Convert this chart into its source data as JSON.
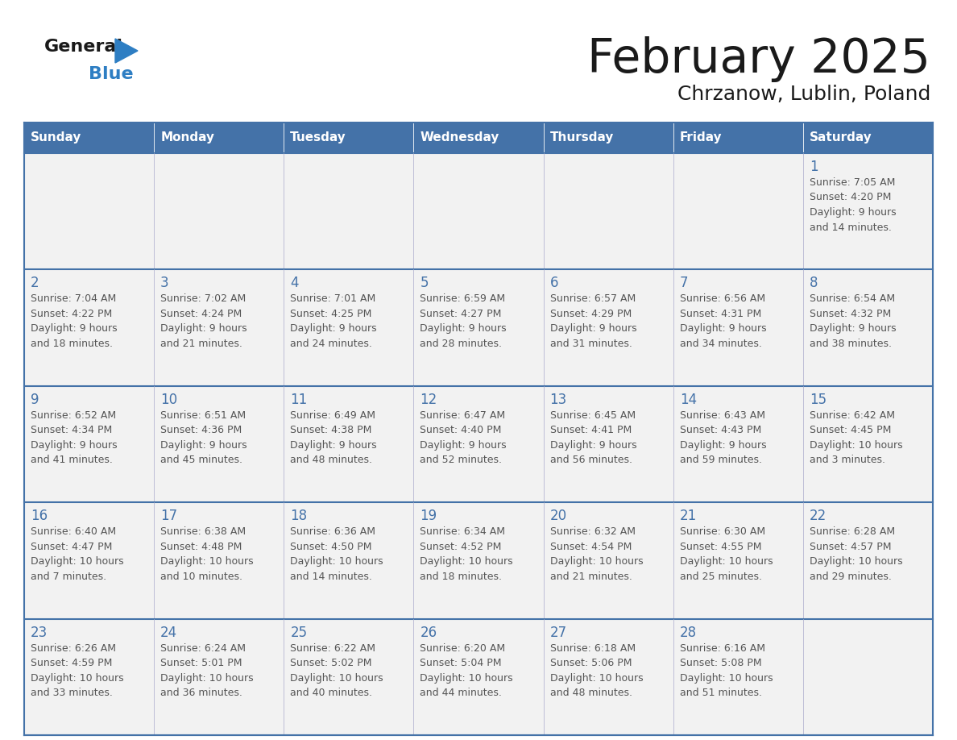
{
  "title": "February 2025",
  "subtitle": "Chrzanow, Lublin, Poland",
  "header_bg_color": "#4472A8",
  "header_text_color": "#FFFFFF",
  "cell_bg_color": "#F2F2F2",
  "text_color": "#555555",
  "day_number_color": "#4472A8",
  "border_color": "#4472A8",
  "thin_border_color": "#aaaacc",
  "days_of_week": [
    "Sunday",
    "Monday",
    "Tuesday",
    "Wednesday",
    "Thursday",
    "Friday",
    "Saturday"
  ],
  "calendar": [
    [
      {
        "day": null,
        "info": null
      },
      {
        "day": null,
        "info": null
      },
      {
        "day": null,
        "info": null
      },
      {
        "day": null,
        "info": null
      },
      {
        "day": null,
        "info": null
      },
      {
        "day": null,
        "info": null
      },
      {
        "day": 1,
        "info": "Sunrise: 7:05 AM\nSunset: 4:20 PM\nDaylight: 9 hours\nand 14 minutes."
      }
    ],
    [
      {
        "day": 2,
        "info": "Sunrise: 7:04 AM\nSunset: 4:22 PM\nDaylight: 9 hours\nand 18 minutes."
      },
      {
        "day": 3,
        "info": "Sunrise: 7:02 AM\nSunset: 4:24 PM\nDaylight: 9 hours\nand 21 minutes."
      },
      {
        "day": 4,
        "info": "Sunrise: 7:01 AM\nSunset: 4:25 PM\nDaylight: 9 hours\nand 24 minutes."
      },
      {
        "day": 5,
        "info": "Sunrise: 6:59 AM\nSunset: 4:27 PM\nDaylight: 9 hours\nand 28 minutes."
      },
      {
        "day": 6,
        "info": "Sunrise: 6:57 AM\nSunset: 4:29 PM\nDaylight: 9 hours\nand 31 minutes."
      },
      {
        "day": 7,
        "info": "Sunrise: 6:56 AM\nSunset: 4:31 PM\nDaylight: 9 hours\nand 34 minutes."
      },
      {
        "day": 8,
        "info": "Sunrise: 6:54 AM\nSunset: 4:32 PM\nDaylight: 9 hours\nand 38 minutes."
      }
    ],
    [
      {
        "day": 9,
        "info": "Sunrise: 6:52 AM\nSunset: 4:34 PM\nDaylight: 9 hours\nand 41 minutes."
      },
      {
        "day": 10,
        "info": "Sunrise: 6:51 AM\nSunset: 4:36 PM\nDaylight: 9 hours\nand 45 minutes."
      },
      {
        "day": 11,
        "info": "Sunrise: 6:49 AM\nSunset: 4:38 PM\nDaylight: 9 hours\nand 48 minutes."
      },
      {
        "day": 12,
        "info": "Sunrise: 6:47 AM\nSunset: 4:40 PM\nDaylight: 9 hours\nand 52 minutes."
      },
      {
        "day": 13,
        "info": "Sunrise: 6:45 AM\nSunset: 4:41 PM\nDaylight: 9 hours\nand 56 minutes."
      },
      {
        "day": 14,
        "info": "Sunrise: 6:43 AM\nSunset: 4:43 PM\nDaylight: 9 hours\nand 59 minutes."
      },
      {
        "day": 15,
        "info": "Sunrise: 6:42 AM\nSunset: 4:45 PM\nDaylight: 10 hours\nand 3 minutes."
      }
    ],
    [
      {
        "day": 16,
        "info": "Sunrise: 6:40 AM\nSunset: 4:47 PM\nDaylight: 10 hours\nand 7 minutes."
      },
      {
        "day": 17,
        "info": "Sunrise: 6:38 AM\nSunset: 4:48 PM\nDaylight: 10 hours\nand 10 minutes."
      },
      {
        "day": 18,
        "info": "Sunrise: 6:36 AM\nSunset: 4:50 PM\nDaylight: 10 hours\nand 14 minutes."
      },
      {
        "day": 19,
        "info": "Sunrise: 6:34 AM\nSunset: 4:52 PM\nDaylight: 10 hours\nand 18 minutes."
      },
      {
        "day": 20,
        "info": "Sunrise: 6:32 AM\nSunset: 4:54 PM\nDaylight: 10 hours\nand 21 minutes."
      },
      {
        "day": 21,
        "info": "Sunrise: 6:30 AM\nSunset: 4:55 PM\nDaylight: 10 hours\nand 25 minutes."
      },
      {
        "day": 22,
        "info": "Sunrise: 6:28 AM\nSunset: 4:57 PM\nDaylight: 10 hours\nand 29 minutes."
      }
    ],
    [
      {
        "day": 23,
        "info": "Sunrise: 6:26 AM\nSunset: 4:59 PM\nDaylight: 10 hours\nand 33 minutes."
      },
      {
        "day": 24,
        "info": "Sunrise: 6:24 AM\nSunset: 5:01 PM\nDaylight: 10 hours\nand 36 minutes."
      },
      {
        "day": 25,
        "info": "Sunrise: 6:22 AM\nSunset: 5:02 PM\nDaylight: 10 hours\nand 40 minutes."
      },
      {
        "day": 26,
        "info": "Sunrise: 6:20 AM\nSunset: 5:04 PM\nDaylight: 10 hours\nand 44 minutes."
      },
      {
        "day": 27,
        "info": "Sunrise: 6:18 AM\nSunset: 5:06 PM\nDaylight: 10 hours\nand 48 minutes."
      },
      {
        "day": 28,
        "info": "Sunrise: 6:16 AM\nSunset: 5:08 PM\nDaylight: 10 hours\nand 51 minutes."
      },
      {
        "day": null,
        "info": null
      }
    ]
  ],
  "logo_general_color": "#1a1a1a",
  "logo_blue_color": "#2E7EC3",
  "logo_triangle_color": "#2E7EC3",
  "fig_width": 11.88,
  "fig_height": 9.18,
  "dpi": 100
}
